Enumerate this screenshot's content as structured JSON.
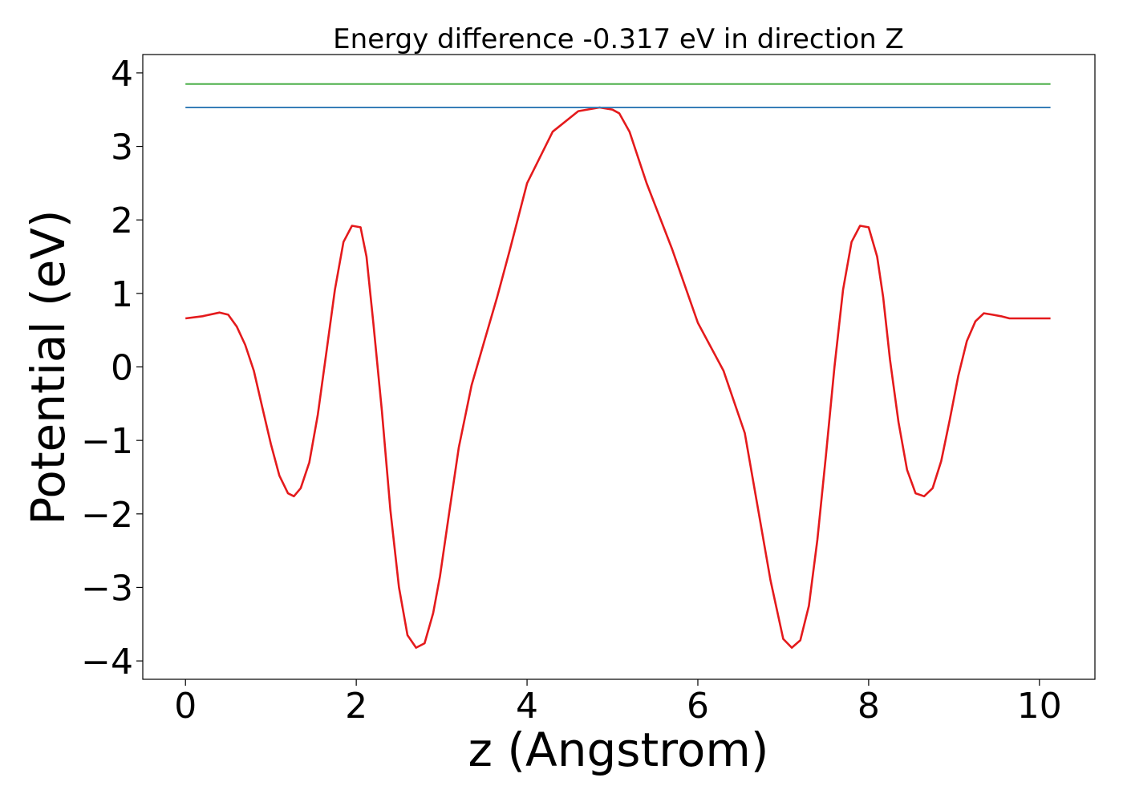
{
  "chart_data": {
    "type": "line",
    "title": "Energy difference -0.317 eV in direction Z",
    "xlabel": "z (Angstrom)",
    "ylabel": "Potential (eV)",
    "xlim": [
      -0.5,
      10.65
    ],
    "ylim": [
      -4.25,
      4.25
    ],
    "xticks": [
      0,
      2,
      4,
      6,
      8,
      10
    ],
    "xtick_labels": [
      "0",
      "2",
      "4",
      "6",
      "8",
      "10"
    ],
    "yticks": [
      -4,
      -3,
      -2,
      -1,
      0,
      1,
      2,
      3,
      4
    ],
    "ytick_labels": [
      "−4",
      "−3",
      "−2",
      "−1",
      "0",
      "1",
      "2",
      "3",
      "4"
    ],
    "grid": false,
    "series": [
      {
        "color": "#e41a1c",
        "x": [
          0.0,
          0.2,
          0.4,
          0.5,
          0.6,
          0.7,
          0.8,
          0.9,
          1.0,
          1.1,
          1.2,
          1.27,
          1.35,
          1.45,
          1.55,
          1.65,
          1.75,
          1.85,
          1.95,
          2.05,
          2.12,
          2.2,
          2.3,
          2.4,
          2.5,
          2.6,
          2.7,
          2.8,
          2.9,
          2.98,
          3.08,
          3.2,
          3.35,
          3.5,
          3.65,
          3.8,
          4.0,
          4.3,
          4.6,
          4.85,
          5.0,
          5.08,
          5.2,
          5.4,
          5.7,
          6.0,
          6.3,
          6.55,
          6.7,
          6.85,
          7.0,
          7.1,
          7.2,
          7.3,
          7.4,
          7.5,
          7.6,
          7.7,
          7.8,
          7.9,
          8.0,
          8.1,
          8.17,
          8.25,
          8.35,
          8.45,
          8.55,
          8.65,
          8.75,
          8.85,
          8.95,
          9.05,
          9.15,
          9.25,
          9.35,
          9.45,
          9.55,
          9.65,
          9.75,
          9.9,
          10.13
        ],
        "y": [
          0.66,
          0.69,
          0.74,
          0.71,
          0.55,
          0.3,
          -0.05,
          -0.55,
          -1.05,
          -1.48,
          -1.72,
          -1.76,
          -1.65,
          -1.3,
          -0.65,
          0.2,
          1.05,
          1.7,
          1.92,
          1.9,
          1.5,
          0.6,
          -0.6,
          -1.95,
          -3.0,
          -3.65,
          -3.82,
          -3.76,
          -3.35,
          -2.85,
          -2.05,
          -1.1,
          -0.25,
          0.35,
          0.95,
          1.6,
          2.5,
          3.2,
          3.48,
          3.53,
          3.5,
          3.45,
          3.2,
          2.5,
          1.6,
          0.6,
          -0.05,
          -0.9,
          -1.9,
          -2.9,
          -3.7,
          -3.82,
          -3.72,
          -3.25,
          -2.35,
          -1.2,
          0.0,
          1.05,
          1.7,
          1.92,
          1.9,
          1.5,
          0.95,
          0.1,
          -0.75,
          -1.4,
          -1.72,
          -1.76,
          -1.65,
          -1.28,
          -0.72,
          -0.12,
          0.35,
          0.62,
          0.73,
          0.71,
          0.69,
          0.66,
          0.66,
          0.66,
          0.66
        ]
      },
      {
        "color": "#377eb8",
        "x": [
          0.0,
          10.13
        ],
        "y": [
          3.53,
          3.53
        ]
      },
      {
        "color": "#4daf4a",
        "x": [
          0.0,
          10.13
        ],
        "y": [
          3.85,
          3.85
        ]
      }
    ]
  }
}
